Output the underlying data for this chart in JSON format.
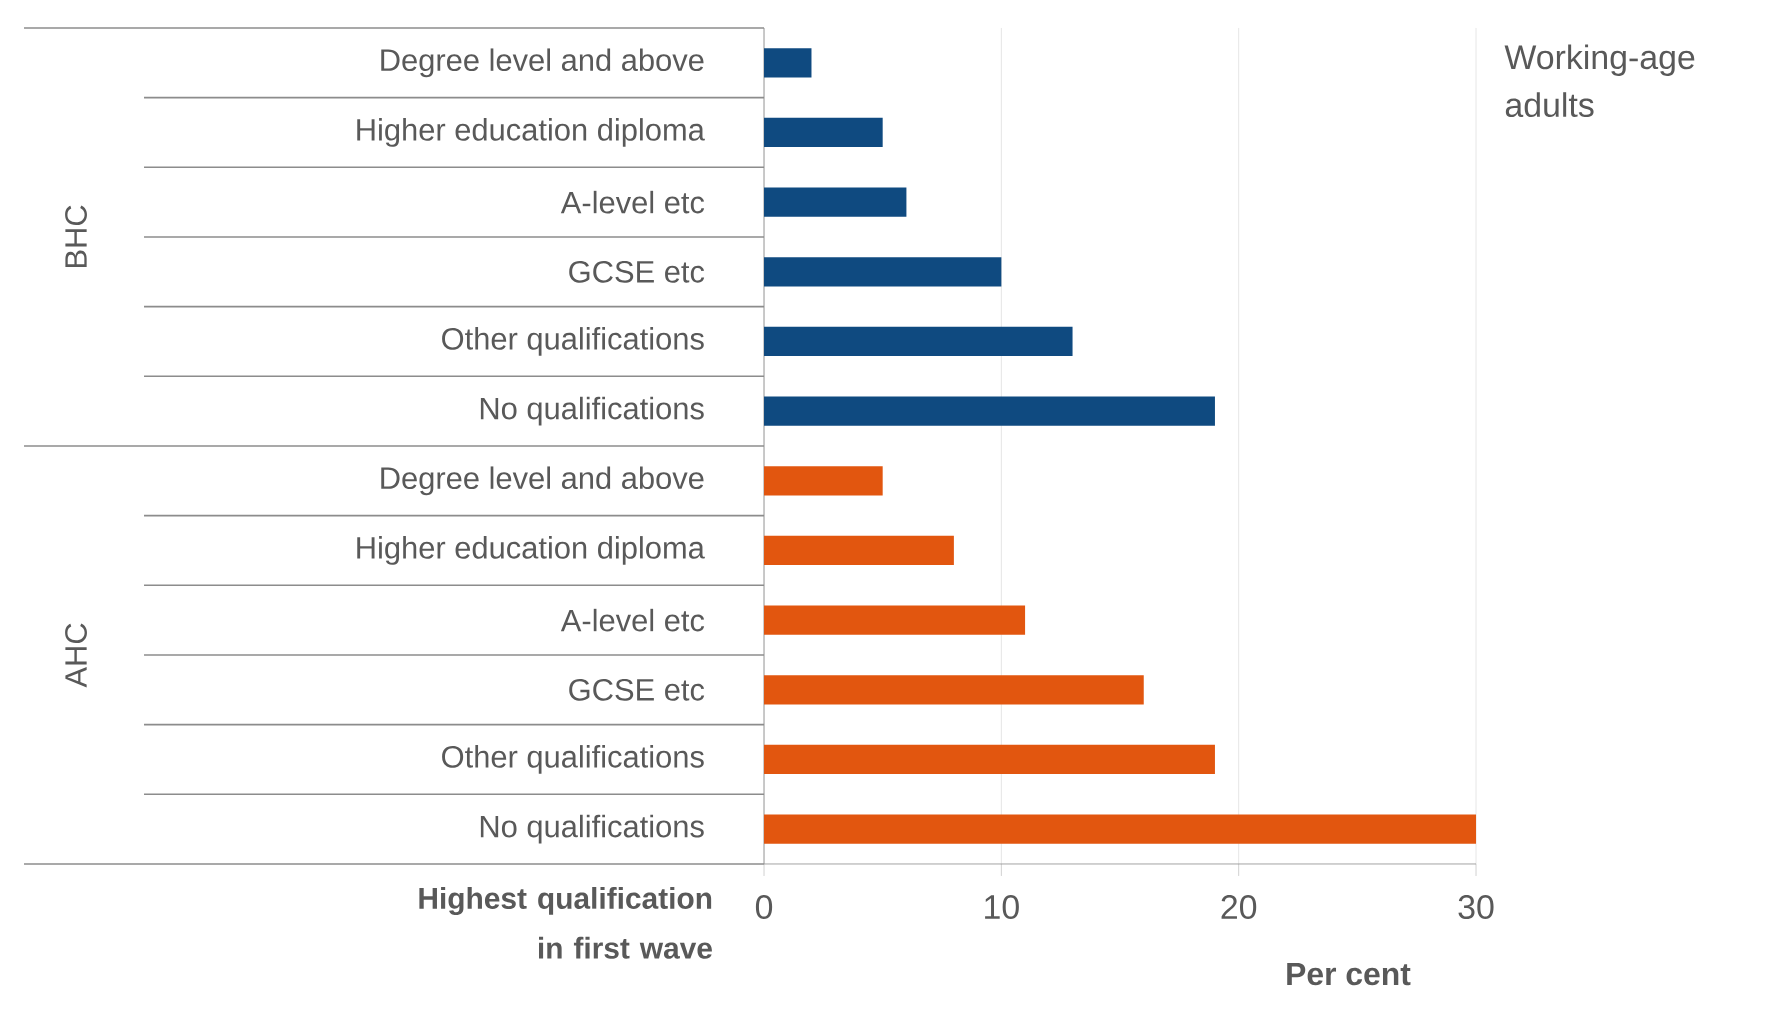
{
  "chart_data": {
    "type": "bar",
    "orientation": "horizontal",
    "categories": [
      "Degree level and above",
      "Higher education diploma",
      "A-level etc",
      "GCSE etc",
      "Other qualifications",
      "No qualifications",
      "Degree level and above",
      "Higher education diploma",
      "A-level etc",
      "GCSE etc",
      "Other qualifications",
      "No qualifications"
    ],
    "values": [
      2,
      5,
      6,
      10,
      13,
      19,
      5,
      8,
      11,
      16,
      19,
      30
    ],
    "colors": [
      "#0f4a80",
      "#0f4a80",
      "#0f4a80",
      "#0f4a80",
      "#0f4a80",
      "#0f4a80",
      "#e2560f",
      "#e2560f",
      "#e2560f",
      "#e2560f",
      "#e2560f",
      "#e2560f"
    ],
    "xlim": [
      0,
      30
    ],
    "xticks": [
      0,
      10,
      20,
      30
    ],
    "grid": "x",
    "xlabel": "Per cent",
    "ylabel": "Highest qualification in first wave",
    "annotations": [
      "Working-age adults",
      "BHC",
      "AHC"
    ]
  }
}
